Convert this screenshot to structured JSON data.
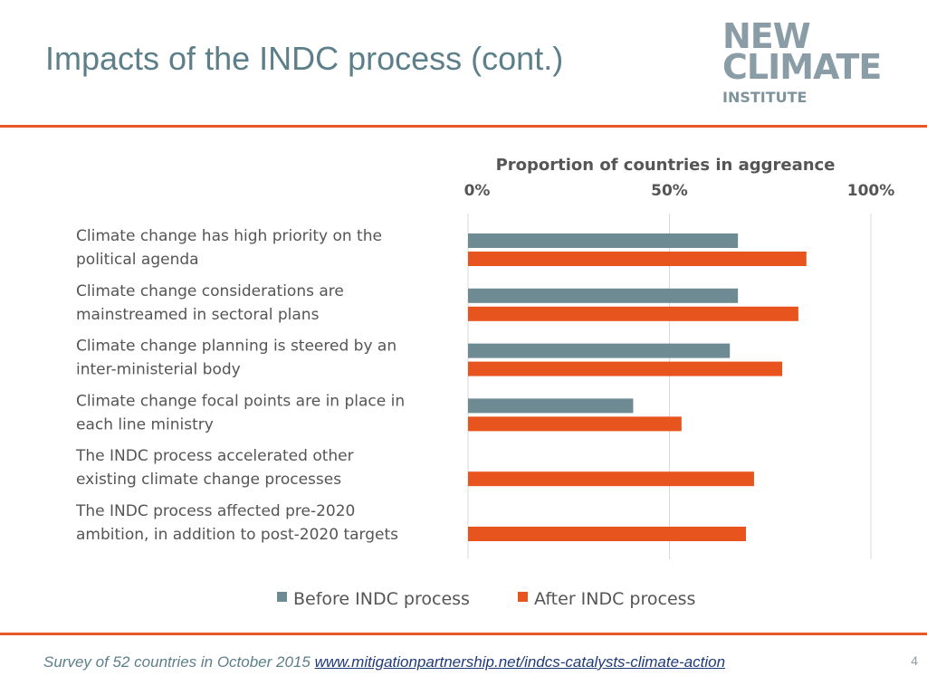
{
  "slide": {
    "title": "Impacts of the INDC process (cont.)",
    "page_number": "4",
    "footer_text": "Survey of 52 countries in October 2015 ",
    "footer_link": "www.mitigationpartnership.net/indcs-catalysts-climate-action"
  },
  "logo": {
    "line1": "NEW",
    "line2": "CLIMATE",
    "line3": "INSTITUTE"
  },
  "colors": {
    "title": "#5d7f8a",
    "rule": "#e8572a",
    "before": "#6e8a92",
    "after": "#e8541e",
    "grid": "#d9d9d9"
  },
  "chart_data": {
    "type": "bar",
    "orientation": "horizontal",
    "title": "Proportion of countries in aggreance",
    "xlim": [
      0,
      100
    ],
    "x_ticks": [
      "0%",
      "50%",
      "100%"
    ],
    "x_axis_position": "top",
    "grid": true,
    "legend_position": "bottom",
    "categories": [
      [
        "Climate change has high priority on the",
        "political agenda"
      ],
      [
        "Climate change considerations are",
        "mainstreamed in sectoral plans"
      ],
      [
        "Climate change planning is steered by an",
        "inter-ministerial body"
      ],
      [
        "Climate change focal points are in place in",
        "each line ministry"
      ],
      [
        "The INDC process accelerated other",
        "existing climate change processes"
      ],
      [
        "The INDC process affected pre-2020",
        "ambition, in addition to post-2020 targets"
      ]
    ],
    "series": [
      {
        "name": "Before INDC process",
        "values": [
          67,
          67,
          65,
          41,
          null,
          null
        ]
      },
      {
        "name": "After INDC process",
        "values": [
          84,
          82,
          78,
          53,
          71,
          69
        ]
      }
    ]
  }
}
